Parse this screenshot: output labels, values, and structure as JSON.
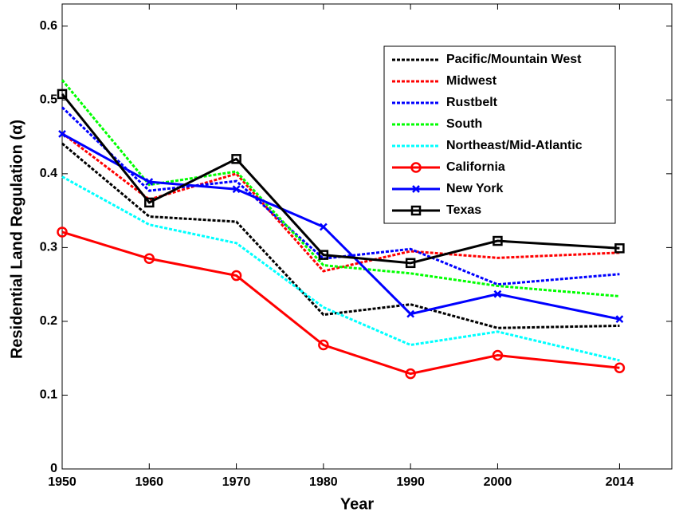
{
  "chart_data": {
    "type": "line",
    "x_label": "Year",
    "y_label": "Residential Land Regulation (α)",
    "x": [
      1950,
      1960,
      1970,
      1980,
      1990,
      2000,
      2014
    ],
    "xlim": [
      1950,
      2020
    ],
    "xticks": [
      1950,
      1960,
      1970,
      1980,
      1990,
      2000,
      2014
    ],
    "ylim": [
      0,
      0.63
    ],
    "yticks": [
      0,
      0.1,
      0.2,
      0.3,
      0.4,
      0.5,
      0.6
    ],
    "legend": "upper right",
    "series": [
      {
        "name": "Pacific/Mountain West",
        "color": "#000000",
        "dash": true,
        "values": [
          0.441,
          0.342,
          0.335,
          0.209,
          0.223,
          0.191,
          0.194
        ]
      },
      {
        "name": "Midwest",
        "color": "#ff0000",
        "dash": true,
        "values": [
          0.455,
          0.365,
          0.4,
          0.268,
          0.295,
          0.286,
          0.293
        ]
      },
      {
        "name": "Rustbelt",
        "color": "#0000ff",
        "dash": true,
        "values": [
          0.49,
          0.377,
          0.39,
          0.285,
          0.298,
          0.25,
          0.264
        ]
      },
      {
        "name": "South",
        "color": "#00ff00",
        "dash": true,
        "values": [
          0.527,
          0.385,
          0.403,
          0.276,
          0.265,
          0.248,
          0.234
        ]
      },
      {
        "name": "Northeast/Mid-Atlantic",
        "color": "#00ffff",
        "dash": true,
        "values": [
          0.396,
          0.331,
          0.306,
          0.219,
          0.168,
          0.186,
          0.147
        ]
      },
      {
        "name": "California",
        "color": "#ff0000",
        "marker": "o",
        "values": [
          0.321,
          0.285,
          0.262,
          0.168,
          0.129,
          0.154,
          0.137
        ]
      },
      {
        "name": "New York",
        "color": "#0000ff",
        "marker": "x",
        "values": [
          0.454,
          0.389,
          0.379,
          0.328,
          0.21,
          0.237,
          0.203
        ]
      },
      {
        "name": "Texas",
        "color": "#000000",
        "marker": "s",
        "values": [
          0.508,
          0.361,
          0.42,
          0.29,
          0.279,
          0.309,
          0.299
        ]
      }
    ]
  }
}
